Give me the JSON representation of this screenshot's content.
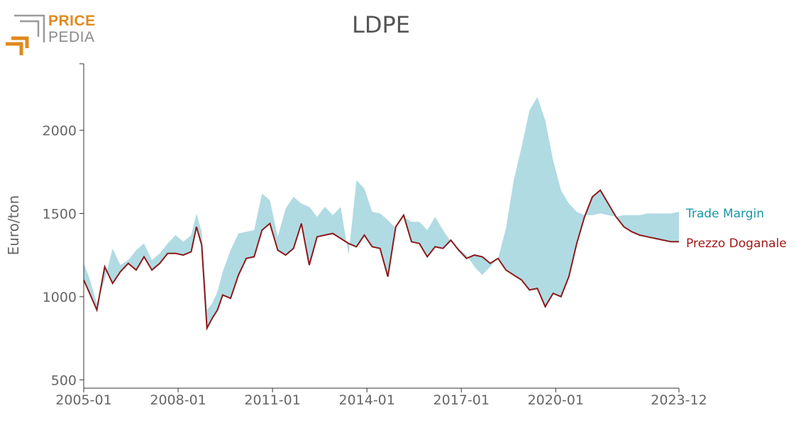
{
  "logo": {
    "word1": "PRICE",
    "word2": "PEDIA"
  },
  "chart_data": {
    "type": "area",
    "title": "LDPE",
    "xlabel": "",
    "ylabel": "Euro/ton",
    "ylim": [
      450,
      2400
    ],
    "yticks": [
      500,
      1000,
      1500,
      2000
    ],
    "x_range": [
      "2005-01",
      "2023-12"
    ],
    "xticks": [
      "2005-01",
      "2008-01",
      "2011-01",
      "2014-01",
      "2017-01",
      "2020-01",
      "2023-12"
    ],
    "legend_placement": "right-inline",
    "grid": false,
    "series": [
      {
        "name": "Trade Margin",
        "kind": "band",
        "color": "#b0dbe3",
        "label_color": "#1a95a6",
        "x": [
          "2005-01",
          "2005-03",
          "2005-06",
          "2005-09",
          "2005-12",
          "2006-03",
          "2006-06",
          "2006-09",
          "2006-12",
          "2007-03",
          "2007-06",
          "2007-09",
          "2007-12",
          "2008-03",
          "2008-06",
          "2008-08",
          "2008-10",
          "2008-12",
          "2009-02",
          "2009-04",
          "2009-06",
          "2009-09",
          "2009-12",
          "2010-03",
          "2010-06",
          "2010-09",
          "2010-12",
          "2011-03",
          "2011-06",
          "2011-09",
          "2011-12",
          "2012-03",
          "2012-06",
          "2012-09",
          "2012-12",
          "2013-03",
          "2013-06",
          "2013-09",
          "2013-12",
          "2014-03",
          "2014-06",
          "2014-09",
          "2014-12",
          "2015-03",
          "2015-06",
          "2015-09",
          "2015-12",
          "2016-03",
          "2016-06",
          "2016-09",
          "2016-12",
          "2017-03",
          "2017-06",
          "2017-09",
          "2017-12",
          "2018-03",
          "2018-06",
          "2018-09",
          "2018-12",
          "2019-03",
          "2019-06",
          "2019-09",
          "2019-12",
          "2020-03",
          "2020-06",
          "2020-09",
          "2020-12",
          "2021-03",
          "2021-06",
          "2021-09",
          "2021-12",
          "2022-03",
          "2022-06",
          "2022-09",
          "2022-12",
          "2023-03",
          "2023-06",
          "2023-09",
          "2023-12"
        ],
        "values": [
          1200,
          1120,
          960,
          1100,
          1290,
          1190,
          1220,
          1280,
          1320,
          1220,
          1260,
          1320,
          1370,
          1330,
          1370,
          1500,
          1390,
          920,
          960,
          1030,
          1150,
          1280,
          1380,
          1390,
          1400,
          1620,
          1580,
          1360,
          1530,
          1600,
          1560,
          1540,
          1480,
          1540,
          1490,
          1540,
          1250,
          1700,
          1650,
          1510,
          1500,
          1460,
          1410,
          1480,
          1450,
          1450,
          1400,
          1480,
          1400,
          1330,
          1290,
          1250,
          1180,
          1130,
          1180,
          1230,
          1410,
          1700,
          1900,
          2120,
          2200,
          2060,
          1820,
          1640,
          1560,
          1510,
          1490,
          1490,
          1500,
          1490,
          1480,
          1490,
          1490,
          1490,
          1500,
          1500,
          1500,
          1500,
          1510
        ]
      },
      {
        "name": "Prezzo Doganale",
        "kind": "line",
        "color": "#8b1a1a",
        "label_color": "#a01818",
        "x": [
          "2005-01",
          "2005-03",
          "2005-06",
          "2005-09",
          "2005-12",
          "2006-03",
          "2006-06",
          "2006-09",
          "2006-12",
          "2007-03",
          "2007-06",
          "2007-09",
          "2007-12",
          "2008-03",
          "2008-06",
          "2008-08",
          "2008-10",
          "2008-12",
          "2009-02",
          "2009-04",
          "2009-06",
          "2009-09",
          "2009-12",
          "2010-03",
          "2010-06",
          "2010-09",
          "2010-12",
          "2011-03",
          "2011-06",
          "2011-09",
          "2011-12",
          "2012-03",
          "2012-06",
          "2012-09",
          "2012-12",
          "2013-03",
          "2013-06",
          "2013-09",
          "2013-12",
          "2014-03",
          "2014-06",
          "2014-09",
          "2014-12",
          "2015-03",
          "2015-06",
          "2015-09",
          "2015-12",
          "2016-03",
          "2016-06",
          "2016-09",
          "2016-12",
          "2017-03",
          "2017-06",
          "2017-09",
          "2017-12",
          "2018-03",
          "2018-06",
          "2018-09",
          "2018-12",
          "2019-03",
          "2019-06",
          "2019-09",
          "2019-12",
          "2020-03",
          "2020-06",
          "2020-09",
          "2020-12",
          "2021-03",
          "2021-06",
          "2021-09",
          "2021-12",
          "2022-03",
          "2022-06",
          "2022-09",
          "2022-12",
          "2023-03",
          "2023-06",
          "2023-09",
          "2023-12"
        ],
        "values": [
          1100,
          1030,
          920,
          1180,
          1080,
          1150,
          1200,
          1160,
          1240,
          1160,
          1200,
          1260,
          1260,
          1250,
          1270,
          1420,
          1310,
          810,
          870,
          920,
          1010,
          990,
          1130,
          1230,
          1240,
          1400,
          1440,
          1280,
          1250,
          1290,
          1440,
          1190,
          1360,
          1370,
          1380,
          1350,
          1320,
          1300,
          1370,
          1300,
          1290,
          1120,
          1420,
          1490,
          1330,
          1320,
          1240,
          1300,
          1290,
          1340,
          1280,
          1230,
          1250,
          1240,
          1200,
          1230,
          1160,
          1130,
          1100,
          1040,
          1050,
          940,
          1020,
          1000,
          1120,
          1320,
          1480,
          1600,
          1640,
          1560,
          1480,
          1420,
          1390,
          1370,
          1360,
          1350,
          1340,
          1330,
          1330
        ]
      }
    ]
  }
}
